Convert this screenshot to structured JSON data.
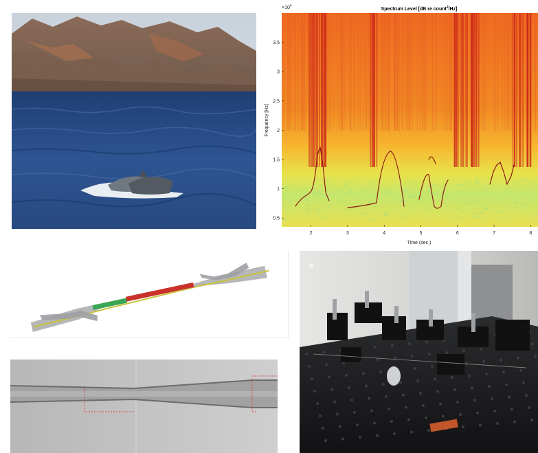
{
  "spectrogram": {
    "title": "Spectrum Level [dB re count",
    "title_sup": "2",
    "title_end": "/Hz]",
    "exponent_base": "×10",
    "exponent_power": "4",
    "ylabel": "Frequency [Hz]",
    "xlabel": "Time (sec.)",
    "x_ticks": [
      "2",
      "3",
      "4",
      "5",
      "6",
      "7",
      "8"
    ],
    "y_ticks": [
      "0.5",
      "1",
      "1.5",
      "2",
      "2.5",
      "3",
      "3.5"
    ]
  },
  "chart_data": {
    "type": "heatmap",
    "title": "Spectrum Level [dB re count^2/Hz]",
    "xlabel": "Time (sec.)",
    "ylabel": "Frequency [Hz]",
    "y_multiplier": "×10^4",
    "xlim": [
      1.2,
      8.2
    ],
    "ylim": [
      0.35,
      4.0
    ],
    "x_ticks": [
      2,
      3,
      4,
      5,
      6,
      7,
      8
    ],
    "y_ticks": [
      0.5,
      1,
      1.5,
      2,
      2.5,
      3,
      3.5
    ],
    "colors": {
      "high": "#d7261e",
      "mid": "#f5a623",
      "low": "#c8e86b"
    }
  },
  "lab_photo": {
    "letter": "c"
  },
  "colors": {
    "sea": "#2b4f86",
    "sky": "#cfd6df",
    "fiber_yellow": "#c9c23a",
    "fiber_red": "#c8322b",
    "fiber_green": "#3aa655",
    "marker_red": "#e23a3a"
  }
}
